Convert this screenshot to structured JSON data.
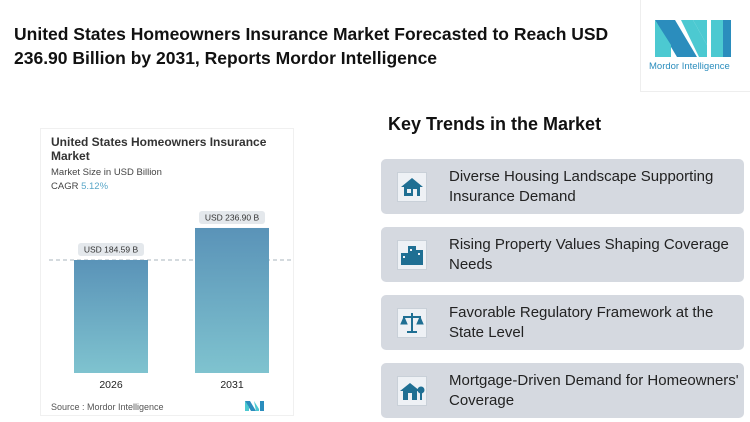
{
  "header": {
    "title": "United States Homeowners Insurance Market Forecasted to Reach USD 236.90 Billion by 2031, Reports Mordor Intelligence",
    "logo_text": "Mordor Intelligence"
  },
  "chart_data": {
    "type": "bar",
    "title": "United States Homeowners Insurance Market",
    "subtitle": "Market Size in USD Billion",
    "cagr_label": "CAGR",
    "cagr_value": "5.12%",
    "categories": [
      "2026",
      "2031"
    ],
    "values": [
      184.59,
      236.9
    ],
    "data_labels": [
      "USD 184.59 B",
      "USD 236.90 B"
    ],
    "ylim": [
      0,
      240
    ],
    "source": "Source :  Mordor Intelligence",
    "colors": {
      "bar_top": "#5a93b8",
      "bar_bottom": "#7fc3cf",
      "cagr": "#5aa7c8"
    }
  },
  "trends": {
    "title": "Key Trends in the Market",
    "items": [
      {
        "label": "Diverse Housing Landscape Supporting Insurance Demand",
        "icon": "house-icon"
      },
      {
        "label": "Rising Property Values Shaping Coverage Needs",
        "icon": "buildings-icon"
      },
      {
        "label": "Favorable Regulatory Framework at the State Level",
        "icon": "scales-icon"
      },
      {
        "label": "Mortgage-Driven Demand for Homeowners' Coverage",
        "icon": "house-tree-icon"
      }
    ]
  }
}
